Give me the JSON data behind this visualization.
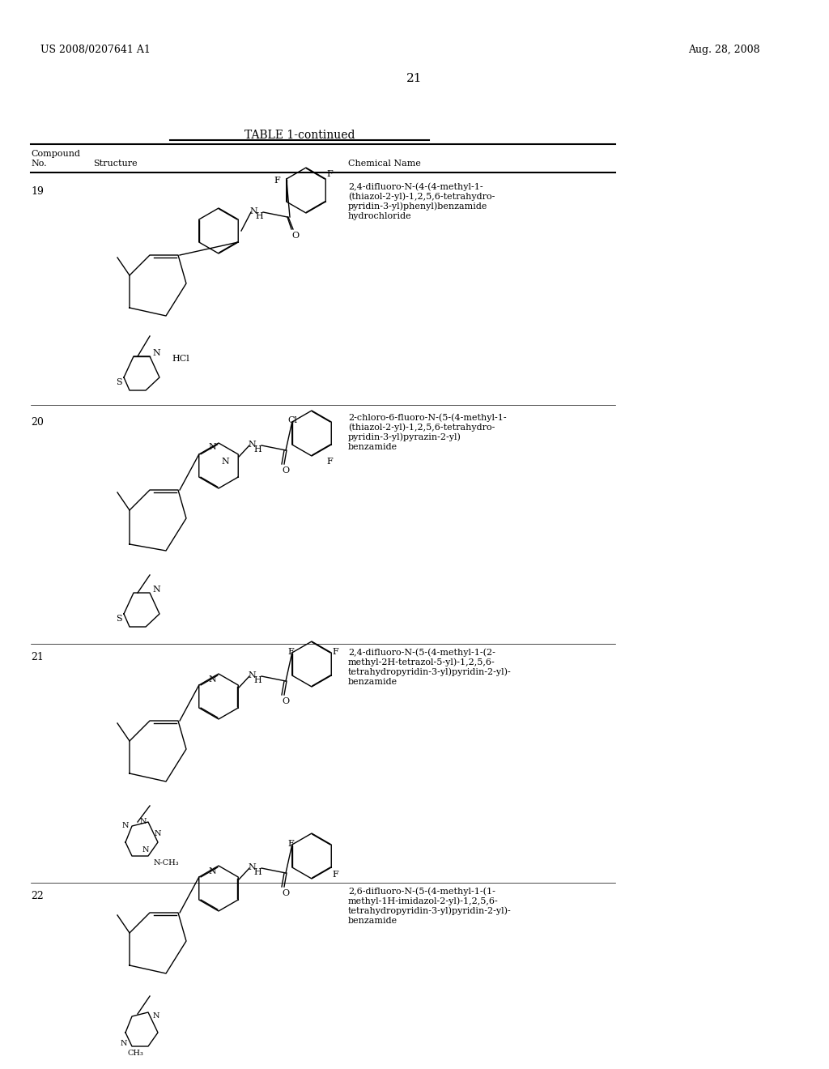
{
  "page_number": "21",
  "patent_number": "US 2008/0207641 A1",
  "date": "Aug. 28, 2008",
  "table_title": "TABLE 1-continued",
  "col1_header": "Compound\nNo.",
  "col2_header": "Structure",
  "col3_header": "Chemical Name",
  "compounds": [
    {
      "no": "19",
      "name": "2,4-difluoro-N-(4-(4-methyl-1-\n(thiazol-2-yl)-1,2,5,6-tetrahydro-\npyridin-3-yl)phenyl)benzamide\nhydrochloride"
    },
    {
      "no": "20",
      "name": "2-chloro-6-fluoro-N-(5-(4-methyl-1-\n(thiazol-2-yl)-1,2,5,6-tetrahydro-\npyridin-3-yl)pyrazin-2-yl)\nbenzamide"
    },
    {
      "no": "21",
      "name": "2,4-difluoro-N-(5-(4-methyl-1-(2-\nmethyl-2H-tetrazol-5-yl)-1,2,5,6-\ntetrahydropyridin-3-yl)pyridin-2-yl)-\nbenzamide"
    },
    {
      "no": "22",
      "name": "2,6-difluoro-N-(5-(4-methyl-1-(1-\nmethyl-1H-imidazol-2-yl)-1,2,5,6-\ntetrahydropyridin-3-yl)pyridin-2-yl)-\nbenzamide"
    }
  ],
  "bg_color": "#ffffff",
  "text_color": "#000000",
  "line_color": "#000000"
}
